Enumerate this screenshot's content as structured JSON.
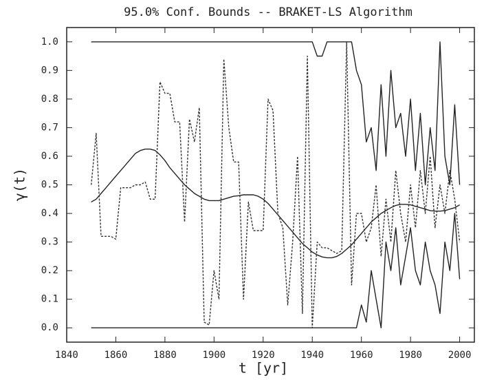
{
  "chart_data": {
    "type": "line",
    "title": "95.0% Conf. Bounds --  BRAKET-LS Algorithm",
    "x_label": "t  [yr]",
    "y_label": "γ(t)",
    "xlim": [
      1840,
      2006
    ],
    "ylim": [
      -0.05,
      1.05
    ],
    "xticks": [
      1840,
      1860,
      1880,
      1900,
      1920,
      1940,
      1960,
      1980,
      2000
    ],
    "yticks": [
      {
        "value": 0,
        "label": "0.0"
      },
      {
        "value": 0.1,
        "label": "0.1"
      },
      {
        "value": 0.2,
        "label": "0.2"
      },
      {
        "value": 0.3,
        "label": "0.3"
      },
      {
        "value": 0.4,
        "label": "0.4"
      },
      {
        "value": 0.5,
        "label": "0.5"
      },
      {
        "value": 0.6,
        "label": "0.6"
      },
      {
        "value": 0.7,
        "label": "0.7"
      },
      {
        "value": 0.8,
        "label": "0.8"
      },
      {
        "value": 0.9,
        "label": "0.9"
      },
      {
        "value": 1,
        "label": "1.0"
      }
    ],
    "x": [
      1850,
      1852,
      1854,
      1856,
      1858,
      1860,
      1862,
      1864,
      1866,
      1868,
      1870,
      1872,
      1874,
      1876,
      1878,
      1880,
      1882,
      1884,
      1886,
      1888,
      1890,
      1892,
      1894,
      1896,
      1898,
      1900,
      1902,
      1904,
      1906,
      1908,
      1910,
      1912,
      1914,
      1916,
      1918,
      1920,
      1922,
      1924,
      1926,
      1928,
      1930,
      1932,
      1934,
      1936,
      1938,
      1940,
      1942,
      1944,
      1946,
      1948,
      1950,
      1952,
      1954,
      1956,
      1958,
      1960,
      1962,
      1964,
      1966,
      1968,
      1970,
      1972,
      1974,
      1976,
      1978,
      1980,
      1982,
      1984,
      1986,
      1988,
      1990,
      1992,
      1994,
      1996,
      1998,
      2000
    ],
    "series": [
      {
        "color": "#222",
        "dashed": false,
        "values": [
          1,
          1,
          1,
          1,
          1,
          1,
          1,
          1,
          1,
          1,
          1,
          1,
          1,
          1,
          1,
          1,
          1,
          1,
          1,
          1,
          1,
          1,
          1,
          1,
          1,
          1,
          1,
          1,
          1,
          1,
          1,
          1,
          1,
          1,
          1,
          1,
          1,
          1,
          1,
          1,
          1,
          1,
          1,
          1,
          1,
          1,
          0.95,
          0.95,
          1,
          1,
          1,
          1,
          1,
          1,
          0.9,
          0.85,
          0.65,
          0.7,
          0.55,
          0.85,
          0.6,
          0.9,
          0.7,
          0.75,
          0.6,
          0.8,
          0.55,
          0.75,
          0.5,
          0.7,
          0.55,
          1,
          0.6,
          0.5,
          0.78,
          0.5
        ]
      },
      {
        "color": "#222",
        "dashed": false,
        "values": [
          0,
          0,
          0,
          0,
          0,
          0,
          0,
          0,
          0,
          0,
          0,
          0,
          0,
          0,
          0,
          0,
          0,
          0,
          0,
          0,
          0,
          0,
          0,
          0,
          0,
          0,
          0,
          0,
          0,
          0,
          0,
          0,
          0,
          0,
          0,
          0,
          0,
          0,
          0,
          0,
          0,
          0,
          0,
          0,
          0,
          0,
          0,
          0,
          0,
          0,
          0,
          0,
          0,
          0,
          0,
          0.08,
          0.02,
          0.2,
          0.1,
          0,
          0.3,
          0.2,
          0.35,
          0.15,
          0.25,
          0.35,
          0.2,
          0.15,
          0.3,
          0.2,
          0.15,
          0.05,
          0.3,
          0.2,
          0.4,
          0.17
        ]
      },
      {
        "color": "#222",
        "dashed": false,
        "values": [
          0.44,
          0.45,
          0.47,
          0.49,
          0.51,
          0.53,
          0.55,
          0.57,
          0.59,
          0.61,
          0.62,
          0.625,
          0.625,
          0.62,
          0.605,
          0.585,
          0.56,
          0.54,
          0.52,
          0.5,
          0.485,
          0.47,
          0.46,
          0.45,
          0.445,
          0.445,
          0.445,
          0.45,
          0.455,
          0.46,
          0.462,
          0.465,
          0.465,
          0.465,
          0.46,
          0.45,
          0.435,
          0.415,
          0.395,
          0.375,
          0.355,
          0.335,
          0.315,
          0.295,
          0.28,
          0.265,
          0.255,
          0.248,
          0.245,
          0.245,
          0.25,
          0.26,
          0.275,
          0.29,
          0.31,
          0.33,
          0.35,
          0.37,
          0.385,
          0.4,
          0.41,
          0.42,
          0.428,
          0.432,
          0.432,
          0.43,
          0.425,
          0.42,
          0.415,
          0.41,
          0.408,
          0.408,
          0.41,
          0.415,
          0.42,
          0.43
        ]
      },
      {
        "color": "#333",
        "dashed": true,
        "values": [
          0.5,
          0.68,
          0.32,
          0.32,
          0.32,
          0.31,
          0.49,
          0.49,
          0.49,
          0.5,
          0.5,
          0.51,
          0.45,
          0.45,
          0.86,
          0.82,
          0.82,
          0.72,
          0.72,
          0.37,
          0.73,
          0.65,
          0.77,
          0.02,
          0.01,
          0.2,
          0.1,
          0.94,
          0.7,
          0.58,
          0.58,
          0.1,
          0.44,
          0.34,
          0.34,
          0.34,
          0.8,
          0.76,
          0.4,
          0.35,
          0.08,
          0.3,
          0.6,
          0.05,
          0.95,
          0,
          0.3,
          0.28,
          0.28,
          0.27,
          0.26,
          0.27,
          1,
          0.15,
          0.4,
          0.4,
          0.3,
          0.35,
          0.5,
          0.25,
          0.45,
          0.3,
          0.55,
          0.4,
          0.3,
          0.5,
          0.35,
          0.55,
          0.4,
          0.6,
          0.35,
          0.5,
          0.4,
          0.55,
          0.45,
          0.3
        ]
      }
    ]
  }
}
